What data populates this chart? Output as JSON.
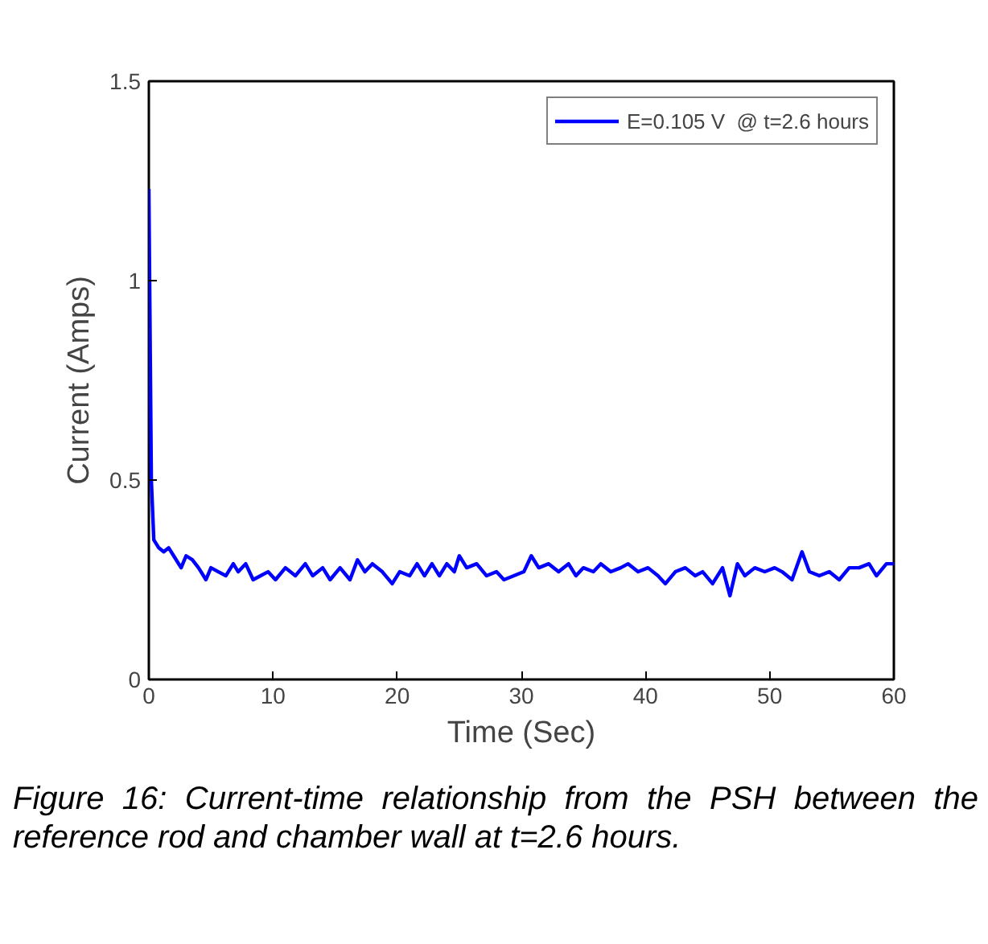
{
  "chart_data": {
    "type": "line",
    "xlabel": "Time (Sec)",
    "ylabel": "Current (Amps)",
    "xlim": [
      0,
      60
    ],
    "ylim": [
      0,
      1.5
    ],
    "xticks": [
      0,
      10,
      20,
      30,
      40,
      50,
      60
    ],
    "yticks": [
      0,
      0.5,
      1,
      1.5
    ],
    "grid": false,
    "legend": "top right",
    "line_style": "solid",
    "annotations": [
      "Figure 16: Current-time relationship from the PSH between the reference rod and chamber wall at t=2.6 hours."
    ],
    "x": [
      0,
      0.2,
      0.4,
      0.8,
      1.2,
      1.6,
      2,
      2.6,
      3,
      3.5,
      4,
      4.6,
      5,
      5.6,
      6.2,
      6.8,
      7.2,
      7.8,
      8.4,
      9,
      9.6,
      10.2,
      11,
      11.8,
      12.6,
      13.2,
      14,
      14.6,
      15.4,
      16.2,
      16.8,
      17.4,
      18,
      18.8,
      19.6,
      20.2,
      21,
      21.6,
      22.2,
      22.8,
      23.4,
      24,
      24.6,
      25,
      25.6,
      26.4,
      27.2,
      28,
      28.6,
      29.4,
      30.2,
      30.8,
      31.4,
      32.2,
      33,
      33.8,
      34.4,
      35,
      35.8,
      36.4,
      37.2,
      38,
      38.6,
      39.4,
      40.2,
      41,
      41.6,
      42.4,
      43.2,
      44,
      44.6,
      45.4,
      46.2,
      46.8,
      47.4,
      48,
      48.8,
      49.6,
      50.4,
      51,
      51.8,
      52.6,
      53.2,
      54,
      54.8,
      55.6,
      56.4,
      57.2,
      58,
      58.6,
      59.4,
      60
    ],
    "series": [
      {
        "name": "E=0.105 V  @ t=2.6 hours",
        "color": "#0000ff",
        "values": [
          1.23,
          0.5,
          0.35,
          0.33,
          0.32,
          0.33,
          0.31,
          0.28,
          0.31,
          0.3,
          0.28,
          0.25,
          0.28,
          0.27,
          0.26,
          0.29,
          0.27,
          0.29,
          0.25,
          0.26,
          0.27,
          0.25,
          0.28,
          0.26,
          0.29,
          0.26,
          0.28,
          0.25,
          0.28,
          0.25,
          0.3,
          0.27,
          0.29,
          0.27,
          0.24,
          0.27,
          0.26,
          0.29,
          0.26,
          0.29,
          0.26,
          0.29,
          0.27,
          0.31,
          0.28,
          0.29,
          0.26,
          0.27,
          0.25,
          0.26,
          0.27,
          0.31,
          0.28,
          0.29,
          0.27,
          0.29,
          0.26,
          0.28,
          0.27,
          0.29,
          0.27,
          0.28,
          0.29,
          0.27,
          0.28,
          0.26,
          0.24,
          0.27,
          0.28,
          0.26,
          0.27,
          0.24,
          0.28,
          0.21,
          0.29,
          0.26,
          0.28,
          0.27,
          0.28,
          0.27,
          0.25,
          0.32,
          0.27,
          0.26,
          0.27,
          0.25,
          0.28,
          0.28,
          0.29,
          0.26,
          0.29,
          0.29
        ]
      }
    ]
  }
}
